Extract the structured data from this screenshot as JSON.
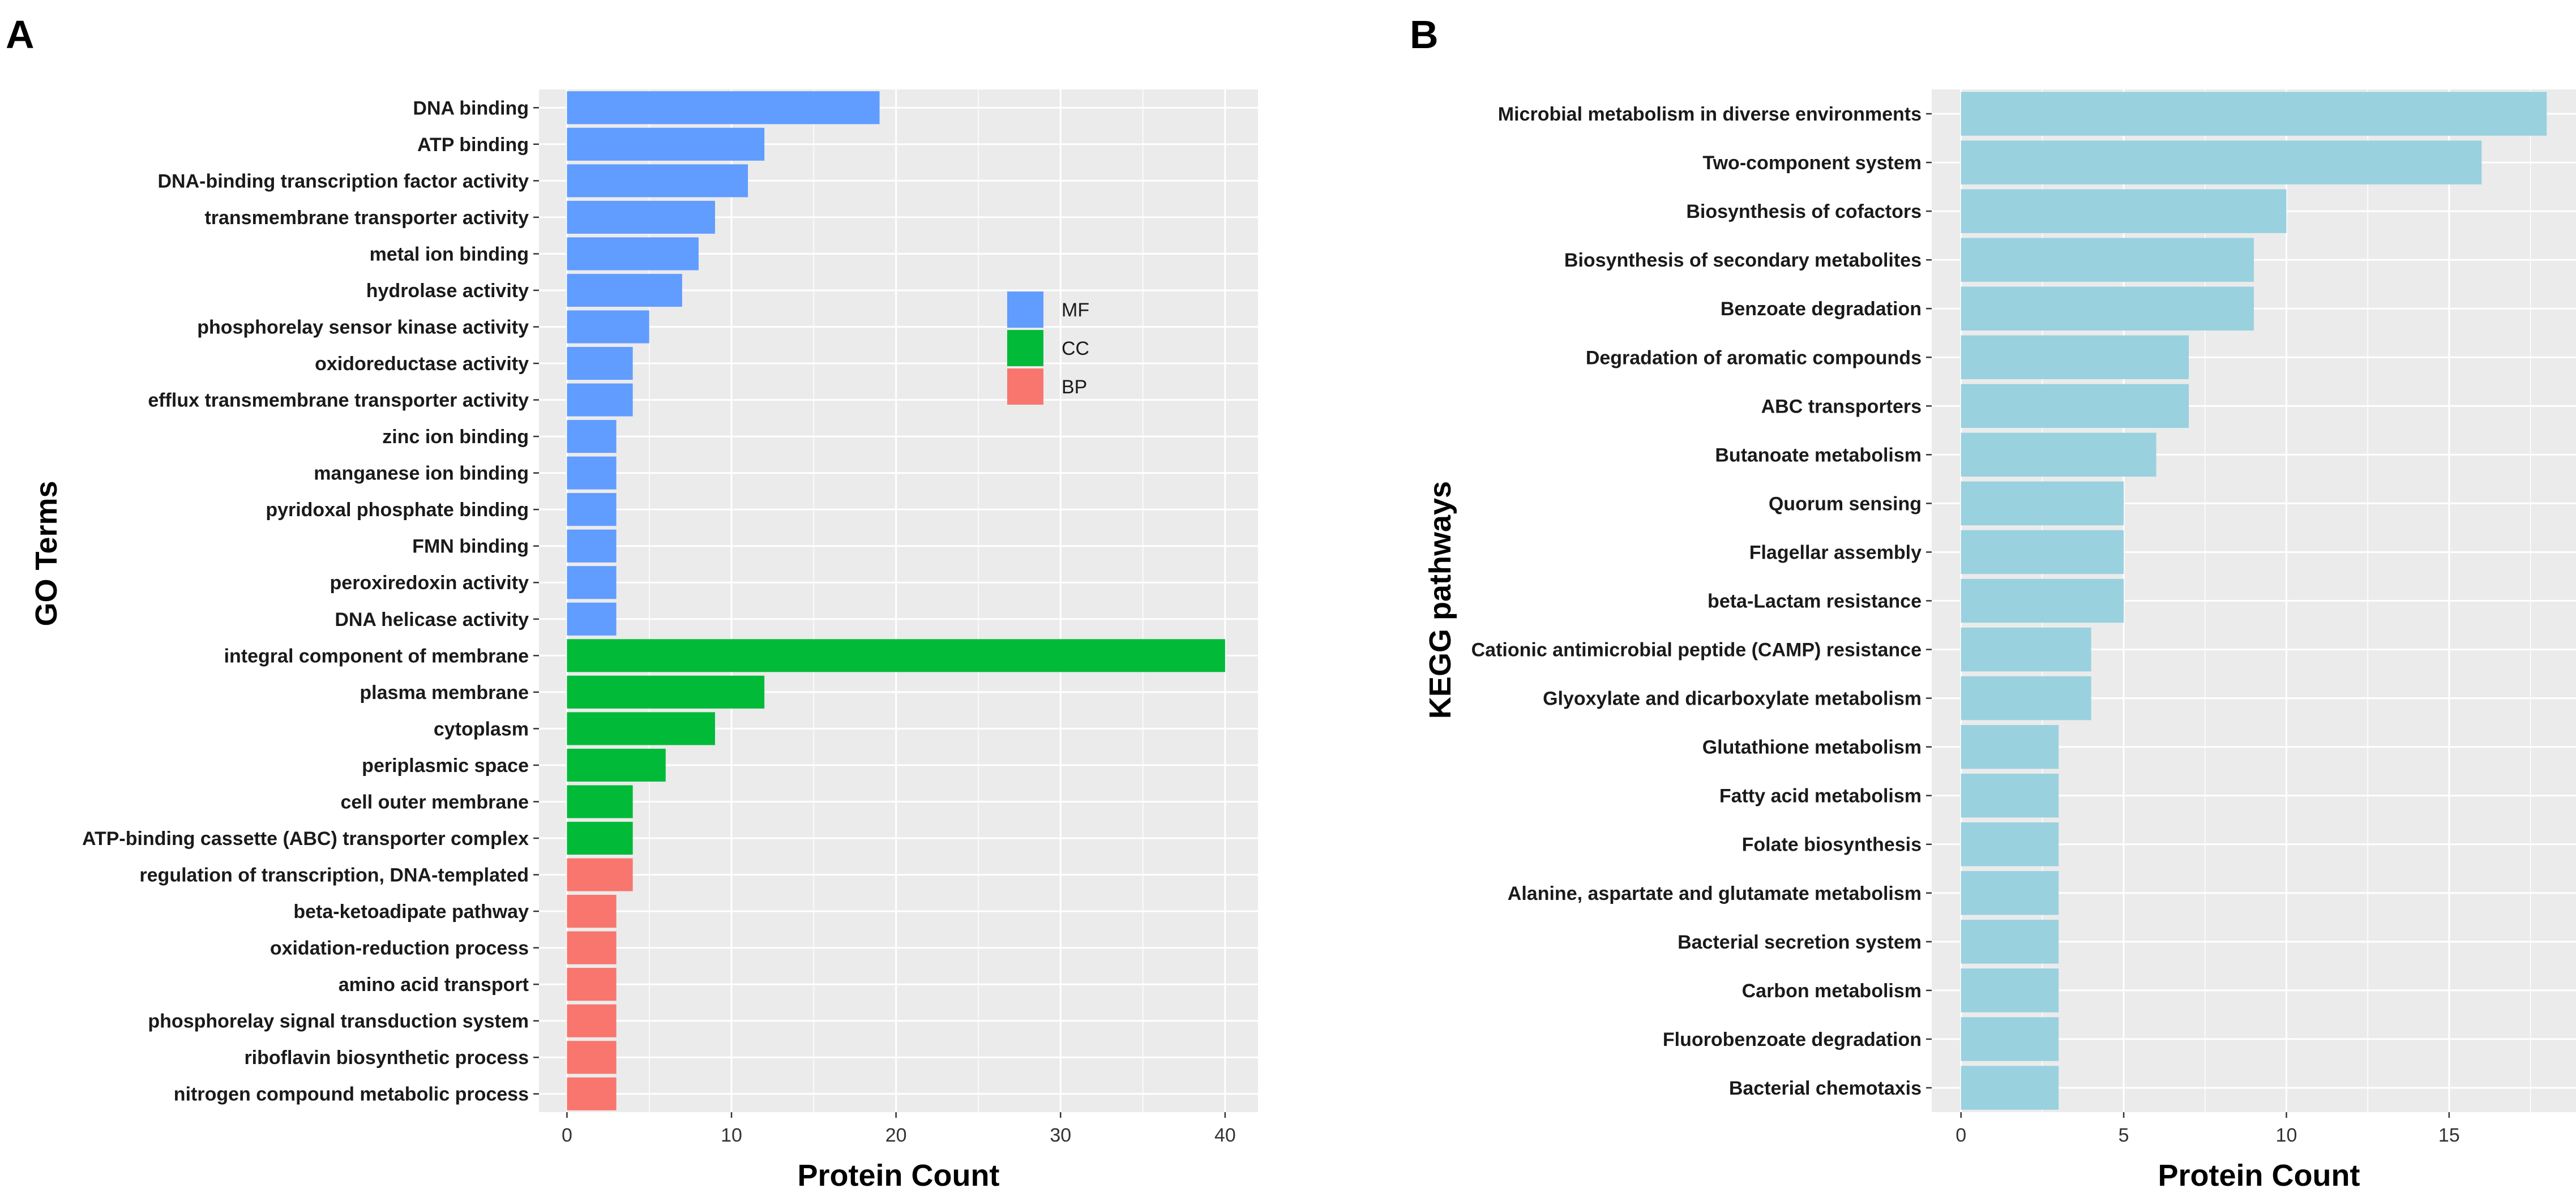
{
  "chart_data": [
    {
      "panel": "A",
      "type": "bar",
      "orientation": "horizontal",
      "xlabel": "Protein Count",
      "ylabel": "GO Terms",
      "xlim": [
        -1.7,
        42
      ],
      "xticks": [
        0,
        10,
        20,
        30,
        40
      ],
      "grid": true,
      "legend": {
        "placement": "top-right",
        "entries": [
          {
            "key": "MF",
            "label": "MF",
            "color": "#619CFF"
          },
          {
            "key": "CC",
            "label": "CC",
            "color": "#00BA38"
          },
          {
            "key": "BP",
            "label": "BP",
            "color": "#F8766D"
          }
        ]
      },
      "bars": [
        {
          "label": "DNA binding",
          "value": 19,
          "group": "MF"
        },
        {
          "label": "ATP binding",
          "value": 12,
          "group": "MF"
        },
        {
          "label": "DNA-binding transcription factor activity",
          "value": 11,
          "group": "MF"
        },
        {
          "label": "transmembrane transporter activity",
          "value": 9,
          "group": "MF"
        },
        {
          "label": "metal ion binding",
          "value": 8,
          "group": "MF"
        },
        {
          "label": "hydrolase activity",
          "value": 7,
          "group": "MF"
        },
        {
          "label": "phosphorelay sensor kinase activity",
          "value": 5,
          "group": "MF"
        },
        {
          "label": "oxidoreductase activity",
          "value": 4,
          "group": "MF"
        },
        {
          "label": "efflux transmembrane transporter activity",
          "value": 4,
          "group": "MF"
        },
        {
          "label": "zinc ion binding",
          "value": 3,
          "group": "MF"
        },
        {
          "label": "manganese ion binding",
          "value": 3,
          "group": "MF"
        },
        {
          "label": "pyridoxal phosphate binding",
          "value": 3,
          "group": "MF"
        },
        {
          "label": "FMN binding",
          "value": 3,
          "group": "MF"
        },
        {
          "label": "peroxiredoxin activity",
          "value": 3,
          "group": "MF"
        },
        {
          "label": "DNA helicase activity",
          "value": 3,
          "group": "MF"
        },
        {
          "label": "integral component of membrane",
          "value": 40,
          "group": "CC"
        },
        {
          "label": "plasma membrane",
          "value": 12,
          "group": "CC"
        },
        {
          "label": "cytoplasm",
          "value": 9,
          "group": "CC"
        },
        {
          "label": "periplasmic space",
          "value": 6,
          "group": "CC"
        },
        {
          "label": "cell outer membrane",
          "value": 4,
          "group": "CC"
        },
        {
          "label": "ATP-binding cassette (ABC) transporter complex",
          "value": 4,
          "group": "CC"
        },
        {
          "label": "regulation of transcription, DNA-templated",
          "value": 4,
          "group": "BP"
        },
        {
          "label": "beta-ketoadipate pathway",
          "value": 3,
          "group": "BP"
        },
        {
          "label": "oxidation-reduction process",
          "value": 3,
          "group": "BP"
        },
        {
          "label": "amino acid transport",
          "value": 3,
          "group": "BP"
        },
        {
          "label": "phosphorelay signal transduction system",
          "value": 3,
          "group": "BP"
        },
        {
          "label": "riboflavin biosynthetic process",
          "value": 3,
          "group": "BP"
        },
        {
          "label": "nitrogen compound metabolic process",
          "value": 3,
          "group": "BP"
        }
      ]
    },
    {
      "panel": "B",
      "type": "bar",
      "orientation": "horizontal",
      "xlabel": "Protein Count",
      "ylabel": "KEGG pathways",
      "xlim": [
        -0.9,
        18.9
      ],
      "xticks": [
        0,
        5,
        10,
        15
      ],
      "grid": true,
      "bar_color": "#99D1DF",
      "bars": [
        {
          "label": "Microbial metabolism in diverse environments",
          "value": 18
        },
        {
          "label": "Two-component system",
          "value": 16
        },
        {
          "label": "Biosynthesis of cofactors",
          "value": 10
        },
        {
          "label": "Biosynthesis of secondary metabolites",
          "value": 9
        },
        {
          "label": "Benzoate degradation",
          "value": 9
        },
        {
          "label": "Degradation of aromatic compounds",
          "value": 7
        },
        {
          "label": "ABC transporters",
          "value": 7
        },
        {
          "label": "Butanoate metabolism",
          "value": 6
        },
        {
          "label": "Quorum sensing",
          "value": 5
        },
        {
          "label": "Flagellar assembly",
          "value": 5
        },
        {
          "label": "beta-Lactam resistance",
          "value": 5
        },
        {
          "label": "Cationic antimicrobial peptide (CAMP) resistance",
          "value": 4
        },
        {
          "label": "Glyoxylate and dicarboxylate metabolism",
          "value": 4
        },
        {
          "label": "Glutathione metabolism",
          "value": 3
        },
        {
          "label": "Fatty acid metabolism",
          "value": 3
        },
        {
          "label": "Folate biosynthesis",
          "value": 3
        },
        {
          "label": "Alanine, aspartate and glutamate metabolism",
          "value": 3
        },
        {
          "label": "Bacterial secretion system",
          "value": 3
        },
        {
          "label": "Carbon metabolism",
          "value": 3
        },
        {
          "label": "Fluorobenzoate degradation",
          "value": 3
        },
        {
          "label": "Bacterial chemotaxis",
          "value": 3
        }
      ]
    }
  ]
}
